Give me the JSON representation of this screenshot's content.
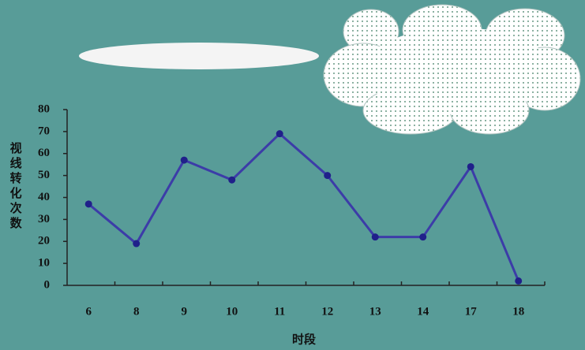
{
  "chart_data": {
    "type": "line",
    "x_label": "时段",
    "y_label": "视线转化次数",
    "categories": [
      "6",
      "8",
      "9",
      "10",
      "11",
      "12",
      "13",
      "14",
      "17",
      "18"
    ],
    "values": [
      37,
      19,
      57,
      48,
      69,
      50,
      22,
      22,
      54,
      2
    ],
    "color": "#3c3ca8",
    "ylim": [
      0,
      80
    ],
    "yticks": [
      0,
      10,
      20,
      30,
      40,
      50,
      60,
      70,
      80
    ],
    "grid": false
  }
}
